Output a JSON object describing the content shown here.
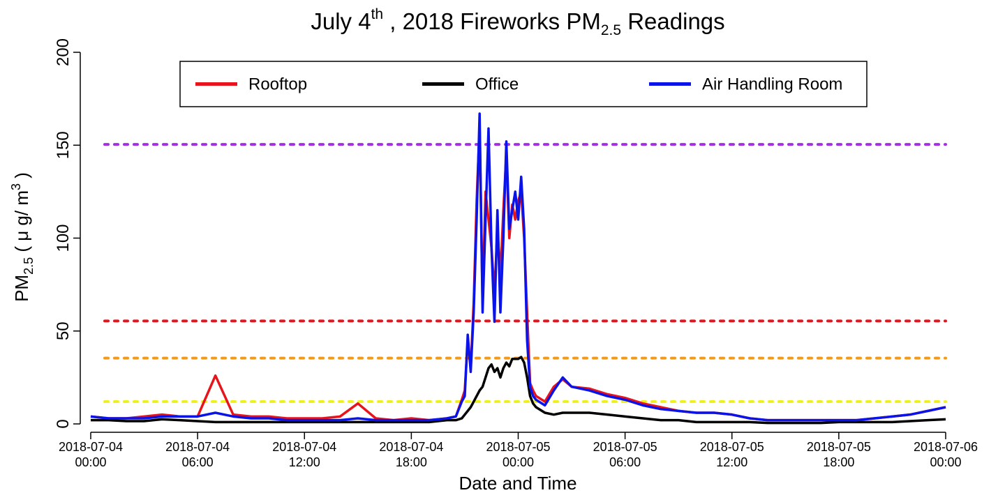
{
  "chart_data": {
    "type": "line",
    "title": [
      "July 4",
      "th",
      " , 2018 Fireworks PM",
      "2.5",
      " Readings"
    ],
    "x_label": "Date and Time",
    "y_label": [
      "PM",
      "2.5",
      " ( μ g/ m",
      "3",
      " )"
    ],
    "x": [
      "2018-07-04 00:00",
      "2018-07-04 01:00",
      "2018-07-04 02:00",
      "2018-07-04 03:00",
      "2018-07-04 04:00",
      "2018-07-04 05:00",
      "2018-07-04 06:00",
      "2018-07-04 07:00",
      "2018-07-04 08:00",
      "2018-07-04 09:00",
      "2018-07-04 10:00",
      "2018-07-04 11:00",
      "2018-07-04 12:00",
      "2018-07-04 13:00",
      "2018-07-04 14:00",
      "2018-07-04 15:00",
      "2018-07-04 16:00",
      "2018-07-04 17:00",
      "2018-07-04 18:00",
      "2018-07-04 19:00",
      "2018-07-04 20:00",
      "2018-07-04 20:30",
      "2018-07-04 20:50",
      "2018-07-04 21:00",
      "2018-07-04 21:10",
      "2018-07-04 21:20",
      "2018-07-04 21:30",
      "2018-07-04 21:40",
      "2018-07-04 21:50",
      "2018-07-04 22:00",
      "2018-07-04 22:10",
      "2018-07-04 22:20",
      "2018-07-04 22:30",
      "2018-07-04 22:40",
      "2018-07-04 22:50",
      "2018-07-04 23:00",
      "2018-07-04 23:10",
      "2018-07-04 23:20",
      "2018-07-04 23:30",
      "2018-07-04 23:40",
      "2018-07-04 23:50",
      "2018-07-05 00:00",
      "2018-07-05 00:10",
      "2018-07-05 00:20",
      "2018-07-05 00:30",
      "2018-07-05 00:40",
      "2018-07-05 00:50",
      "2018-07-05 01:00",
      "2018-07-05 01:30",
      "2018-07-05 02:00",
      "2018-07-05 02:30",
      "2018-07-05 03:00",
      "2018-07-05 04:00",
      "2018-07-05 05:00",
      "2018-07-05 06:00",
      "2018-07-05 07:00",
      "2018-07-05 08:00",
      "2018-07-05 09:00",
      "2018-07-05 10:00",
      "2018-07-05 11:00",
      "2018-07-05 12:00",
      "2018-07-05 13:00",
      "2018-07-05 14:00",
      "2018-07-05 15:00",
      "2018-07-05 16:00",
      "2018-07-05 17:00",
      "2018-07-05 18:00",
      "2018-07-05 19:00",
      "2018-07-05 20:00",
      "2018-07-05 21:00",
      "2018-07-05 22:00",
      "2018-07-05 23:00",
      "2018-07-06 00:00"
    ],
    "series": [
      {
        "name": "Rooftop",
        "color": "#e8141c",
        "values": [
          4,
          3,
          3,
          4,
          5,
          4,
          4,
          26,
          5,
          4,
          4,
          3,
          3,
          3,
          4,
          11,
          3,
          2,
          3,
          2,
          3,
          4,
          13,
          18,
          45,
          30,
          65,
          120,
          160,
          65,
          125,
          110,
          95,
          70,
          105,
          80,
          115,
          145,
          100,
          118,
          110,
          120,
          125,
          100,
          60,
          22,
          18,
          15,
          12,
          20,
          24,
          20,
          19,
          16,
          14,
          11,
          9,
          7,
          6,
          6,
          5,
          3,
          2,
          2,
          2,
          2,
          2,
          2,
          3,
          4,
          5,
          7,
          9
        ]
      },
      {
        "name": "Office",
        "color": "#000000",
        "values": [
          2,
          2,
          1.5,
          1.5,
          2.5,
          2,
          1.5,
          1,
          1,
          1,
          1,
          1,
          1,
          1,
          1,
          1,
          1,
          1,
          1,
          1,
          2,
          2,
          3,
          5,
          7,
          9,
          12,
          15,
          18,
          20,
          25,
          30,
          32,
          28,
          30,
          25,
          30,
          33,
          31,
          35,
          35,
          35,
          36,
          33,
          25,
          15,
          11,
          9,
          6,
          5,
          6,
          6,
          6,
          5,
          4,
          3,
          2,
          2,
          1,
          1,
          1,
          1,
          0.5,
          0.5,
          0.5,
          0.5,
          1,
          1,
          1,
          1,
          1.5,
          2,
          2.5
        ]
      },
      {
        "name": "Air Handling Room",
        "color": "#0a14e8",
        "values": [
          4,
          3,
          3,
          3,
          4,
          4,
          4,
          6,
          4,
          3,
          3,
          2,
          2,
          2,
          2,
          3,
          2,
          2,
          2,
          2,
          3,
          4,
          12,
          15,
          48,
          28,
          60,
          110,
          167,
          60,
          110,
          159,
          95,
          55,
          115,
          60,
          100,
          152,
          105,
          115,
          125,
          110,
          133,
          105,
          45,
          20,
          15,
          13,
          10,
          18,
          25,
          20,
          18,
          15,
          13,
          10,
          8,
          7,
          6,
          6,
          5,
          3,
          2,
          2,
          2,
          2,
          2,
          2,
          3,
          4,
          5,
          7,
          9
        ]
      }
    ],
    "reference_lines": [
      {
        "value": 150.4,
        "color": "#a030e0"
      },
      {
        "value": 55.4,
        "color": "#e8141c"
      },
      {
        "value": 35.4,
        "color": "#f09a20"
      },
      {
        "value": 12,
        "color": "#f0f020"
      }
    ],
    "xlim": [
      "2018-07-04 00:00",
      "2018-07-06 00:00"
    ],
    "xticks": [
      {
        "value": "2018-07-04 00:00",
        "label": "2018-07-04\n00:00"
      },
      {
        "value": "2018-07-04 06:00",
        "label": "2018-07-04\n06:00"
      },
      {
        "value": "2018-07-04 12:00",
        "label": "2018-07-04\n12:00"
      },
      {
        "value": "2018-07-04 18:00",
        "label": "2018-07-04\n18:00"
      },
      {
        "value": "2018-07-05 00:00",
        "label": "2018-07-05\n00:00"
      },
      {
        "value": "2018-07-05 06:00",
        "label": "2018-07-05\n06:00"
      },
      {
        "value": "2018-07-05 12:00",
        "label": "2018-07-05\n12:00"
      },
      {
        "value": "2018-07-05 18:00",
        "label": "2018-07-05\n18:00"
      },
      {
        "value": "2018-07-06 00:00",
        "label": "2018-07-06\n00:00"
      }
    ],
    "ylim": [
      0,
      200
    ],
    "yticks": [
      0,
      50,
      100,
      150,
      200
    ],
    "legend": "top"
  }
}
